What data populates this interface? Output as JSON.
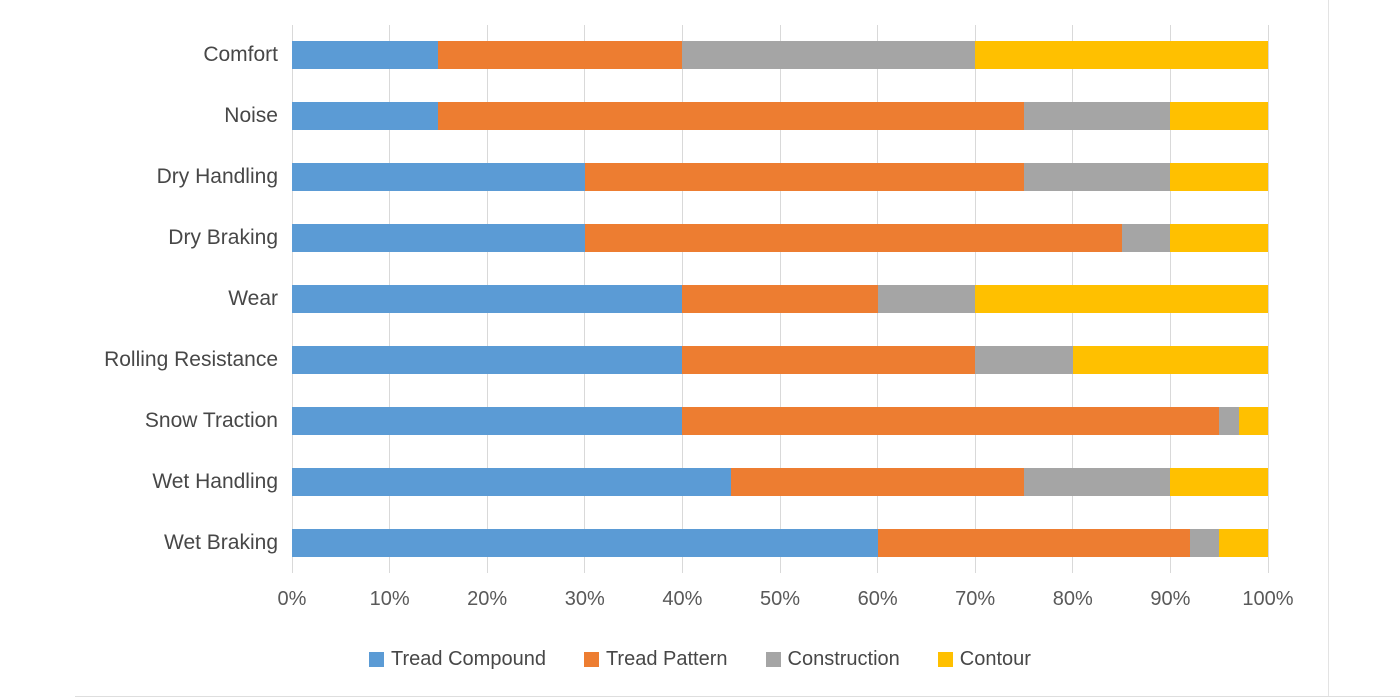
{
  "chart_data": {
    "type": "bar",
    "orientation": "horizontal",
    "stacked": true,
    "stacked_total": 100,
    "title": "",
    "categories": [
      "Comfort",
      "Noise",
      "Dry Handling",
      "Dry Braking",
      "Wear",
      "Rolling Resistance",
      "Snow Traction",
      "Wet Handling",
      "Wet Braking"
    ],
    "series": [
      {
        "name": "Tread Compound",
        "color": "#5B9BD5",
        "values": [
          15,
          15,
          30,
          30,
          40,
          40,
          40,
          45,
          60
        ]
      },
      {
        "name": "Tread Pattern",
        "color": "#ED7D31",
        "values": [
          25,
          60,
          45,
          55,
          20,
          30,
          55,
          30,
          32
        ]
      },
      {
        "name": "Construction",
        "color": "#A5A5A5",
        "values": [
          30,
          15,
          15,
          5,
          10,
          10,
          2,
          15,
          3
        ]
      },
      {
        "name": "Contour",
        "color": "#FFC000",
        "values": [
          30,
          10,
          10,
          10,
          30,
          20,
          3,
          10,
          5
        ]
      }
    ],
    "x_axis": {
      "min": 0,
      "max": 100,
      "unit": "%",
      "ticks": [
        "0%",
        "10%",
        "20%",
        "30%",
        "40%",
        "50%",
        "60%",
        "70%",
        "80%",
        "90%",
        "100%"
      ]
    },
    "grid": true,
    "legend_position": "bottom"
  },
  "colors": {
    "background": "#FFFFFF",
    "gridline": "#D9D9D9",
    "category_text": "#474747",
    "tick_text": "#595959",
    "frame_line": "#E3E3E3"
  }
}
